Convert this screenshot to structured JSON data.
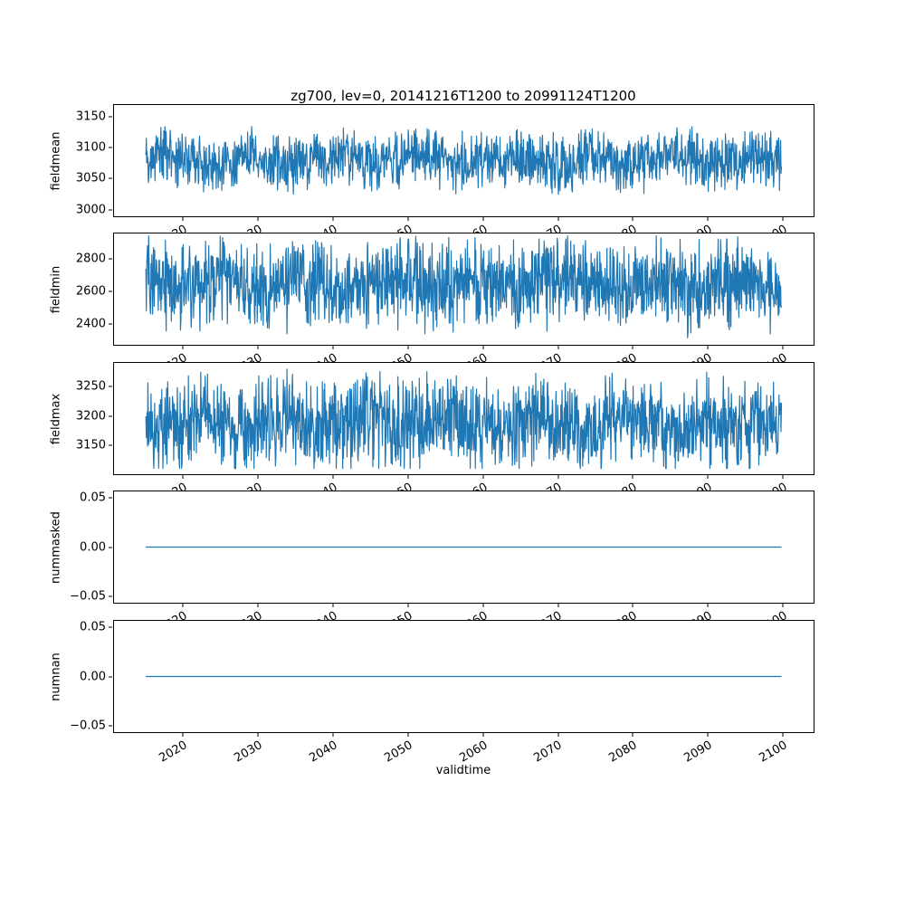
{
  "figure": {
    "title": "zg700, lev=0, 20141216T1200 to 20991124T1200",
    "xlabel": "validtime",
    "background": "#ffffff",
    "line_color": "#1f77b4"
  },
  "x_axis": {
    "label": "validtime",
    "ticks": [
      "2020",
      "2030",
      "2040",
      "2050",
      "2060",
      "2070",
      "2080",
      "2090",
      "2100"
    ],
    "tick_values": [
      2020,
      2030,
      2040,
      2050,
      2060,
      2070,
      2080,
      2090,
      2100
    ],
    "xlim": [
      2010.7,
      2104.2
    ],
    "data_start": 2014.96,
    "data_end": 2099.9
  },
  "chart_data": [
    {
      "type": "line",
      "ylabel": "fieldmean",
      "ylim": [
        2988,
        3170
      ],
      "yticks": [
        3000,
        3050,
        3100,
        3150
      ],
      "ytick_labels": [
        "3000",
        "3050",
        "3100",
        "3150"
      ],
      "series": {
        "name": "fieldmean",
        "kind": "noisy",
        "mean": 3080,
        "amp": 55,
        "clip_min": 2998,
        "clip_max": 3162,
        "n_points": 1600
      }
    },
    {
      "type": "line",
      "ylabel": "fieldmin",
      "ylim": [
        2265,
        2960
      ],
      "yticks": [
        2400,
        2600,
        2800
      ],
      "ytick_labels": [
        "2400",
        "2600",
        "2800"
      ],
      "series": {
        "name": "fieldmin",
        "kind": "noisy",
        "mean": 2645,
        "amp": 320,
        "clip_min": 2285,
        "clip_max": 2945,
        "n_points": 1600
      }
    },
    {
      "type": "line",
      "ylabel": "fieldmax",
      "ylim": [
        3100,
        3292
      ],
      "yticks": [
        3150,
        3200,
        3250
      ],
      "ytick_labels": [
        "3150",
        "3200",
        "3250"
      ],
      "series": {
        "name": "fieldmax",
        "kind": "noisy",
        "mean": 3188,
        "amp": 92,
        "clip_min": 3110,
        "clip_max": 3285,
        "n_points": 1600
      }
    },
    {
      "type": "line",
      "ylabel": "nummasked",
      "ylim": [
        -0.057,
        0.057
      ],
      "yticks": [
        -0.05,
        0.0,
        0.05
      ],
      "ytick_labels": [
        "−0.05",
        "0.00",
        "0.05"
      ],
      "series": {
        "name": "nummasked",
        "kind": "constant",
        "value": 0.0
      }
    },
    {
      "type": "line",
      "ylabel": "numnan",
      "ylim": [
        -0.057,
        0.057
      ],
      "yticks": [
        -0.05,
        0.0,
        0.05
      ],
      "ytick_labels": [
        "−0.05",
        "0.00",
        "0.05"
      ],
      "series": {
        "name": "numnan",
        "kind": "constant",
        "value": 0.0
      }
    }
  ]
}
